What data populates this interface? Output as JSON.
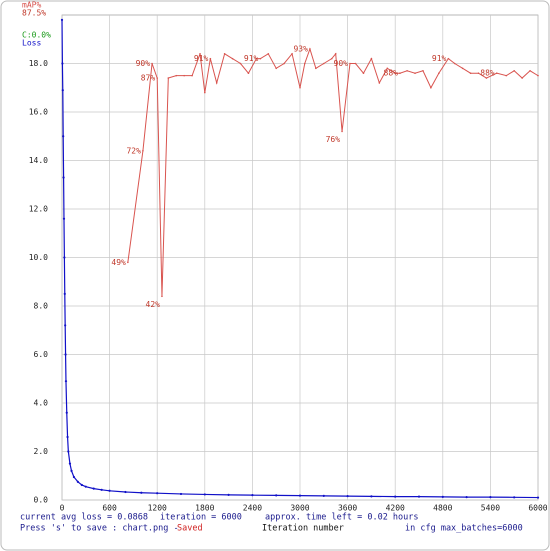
{
  "chart_data": {
    "type": "line",
    "xlabel": "Iteration number",
    "xlim": [
      0,
      6000
    ],
    "xticks": [
      0,
      600,
      1200,
      1800,
      2400,
      3000,
      3600,
      4200,
      4800,
      5400,
      6000
    ],
    "ylim": [
      0,
      20
    ],
    "yticks": [
      {
        "value": 0,
        "label": "0.0"
      },
      {
        "value": 2,
        "label": "2.0"
      },
      {
        "value": 4,
        "label": "4.0"
      },
      {
        "value": 6,
        "label": "6.0"
      },
      {
        "value": 8,
        "label": "8.0"
      },
      {
        "value": 10,
        "label": "10.0"
      },
      {
        "value": 12,
        "label": "12.0"
      },
      {
        "value": 14,
        "label": "14.0"
      },
      {
        "value": 16,
        "label": "16.0"
      },
      {
        "value": 18,
        "label": "18.0"
      }
    ],
    "y2lim": [
      0,
      100
    ],
    "grid": true,
    "legend_extra": [
      {
        "text": "87.5%",
        "color": "#c0392b"
      },
      {
        "text": "C:0.0%",
        "color": "#1a9a1a"
      }
    ],
    "series": [
      {
        "name": "mAP%",
        "color": "#d9544f",
        "axis": "y2",
        "x": [
          830,
          1020,
          1135,
          1200,
          1260,
          1340,
          1440,
          1540,
          1640,
          1740,
          1800,
          1870,
          1950,
          2050,
          2150,
          2250,
          2350,
          2450,
          2500,
          2600,
          2700,
          2800,
          2900,
          3000,
          3060,
          3125,
          3200,
          3300,
          3400,
          3450,
          3530,
          3630,
          3700,
          3800,
          3900,
          4000,
          4100,
          4200,
          4260,
          4350,
          4450,
          4550,
          4650,
          4750,
          4870,
          4950,
          5050,
          5150,
          5250,
          5350,
          5480,
          5600,
          5700,
          5800,
          5900,
          6000
        ],
        "values": [
          49,
          72,
          90,
          87,
          42,
          87,
          87.5,
          87.5,
          87.5,
          92,
          84,
          91,
          86,
          92,
          91,
          90,
          88,
          91,
          91,
          92,
          89,
          90,
          92,
          85,
          90,
          93,
          89,
          90,
          91,
          92,
          76,
          90,
          90,
          88,
          91,
          86,
          89,
          88,
          88,
          88.5,
          88,
          88.5,
          85,
          88,
          91,
          90,
          89,
          88,
          88,
          87,
          88,
          87.5,
          88.5,
          87,
          88.5,
          87.5
        ],
        "value_labels": [
          "49%",
          "72%",
          "90%",
          "87%",
          "42%",
          null,
          null,
          null,
          null,
          null,
          null,
          "91%",
          null,
          null,
          null,
          null,
          null,
          null,
          "91%",
          null,
          null,
          null,
          null,
          null,
          null,
          "93%",
          null,
          null,
          null,
          null,
          "76%",
          "90%",
          null,
          null,
          null,
          null,
          null,
          null,
          "88%",
          null,
          null,
          null,
          null,
          null,
          "91%",
          null,
          null,
          null,
          null,
          null,
          "88%",
          null,
          null,
          null,
          null,
          null
        ]
      },
      {
        "name": "Loss",
        "color": "#1010c8",
        "x": [
          0,
          5,
          10,
          15,
          20,
          25,
          30,
          35,
          40,
          45,
          50,
          60,
          70,
          80,
          100,
          120,
          150,
          200,
          250,
          300,
          400,
          500,
          600,
          800,
          1000,
          1200,
          1500,
          1800,
          2100,
          2400,
          2700,
          3000,
          3300,
          3600,
          3900,
          4200,
          4500,
          4800,
          5100,
          5400,
          5700,
          6000
        ],
        "values": [
          19.8,
          18.0,
          16.9,
          15.0,
          13.3,
          11.6,
          10.0,
          8.5,
          7.2,
          6.0,
          4.9,
          3.6,
          2.6,
          2.0,
          1.5,
          1.2,
          0.95,
          0.75,
          0.62,
          0.55,
          0.47,
          0.42,
          0.38,
          0.33,
          0.3,
          0.28,
          0.25,
          0.23,
          0.21,
          0.2,
          0.19,
          0.18,
          0.17,
          0.16,
          0.15,
          0.14,
          0.14,
          0.13,
          0.12,
          0.12,
          0.11,
          0.1
        ]
      }
    ],
    "annotations": [
      "current avg loss = 0.0868",
      "iteration = 6000",
      "approx. time left = 0.02 hours",
      "Press 's' to save : chart.png - ",
      "Saved",
      "in cfg max_batches=6000"
    ]
  }
}
